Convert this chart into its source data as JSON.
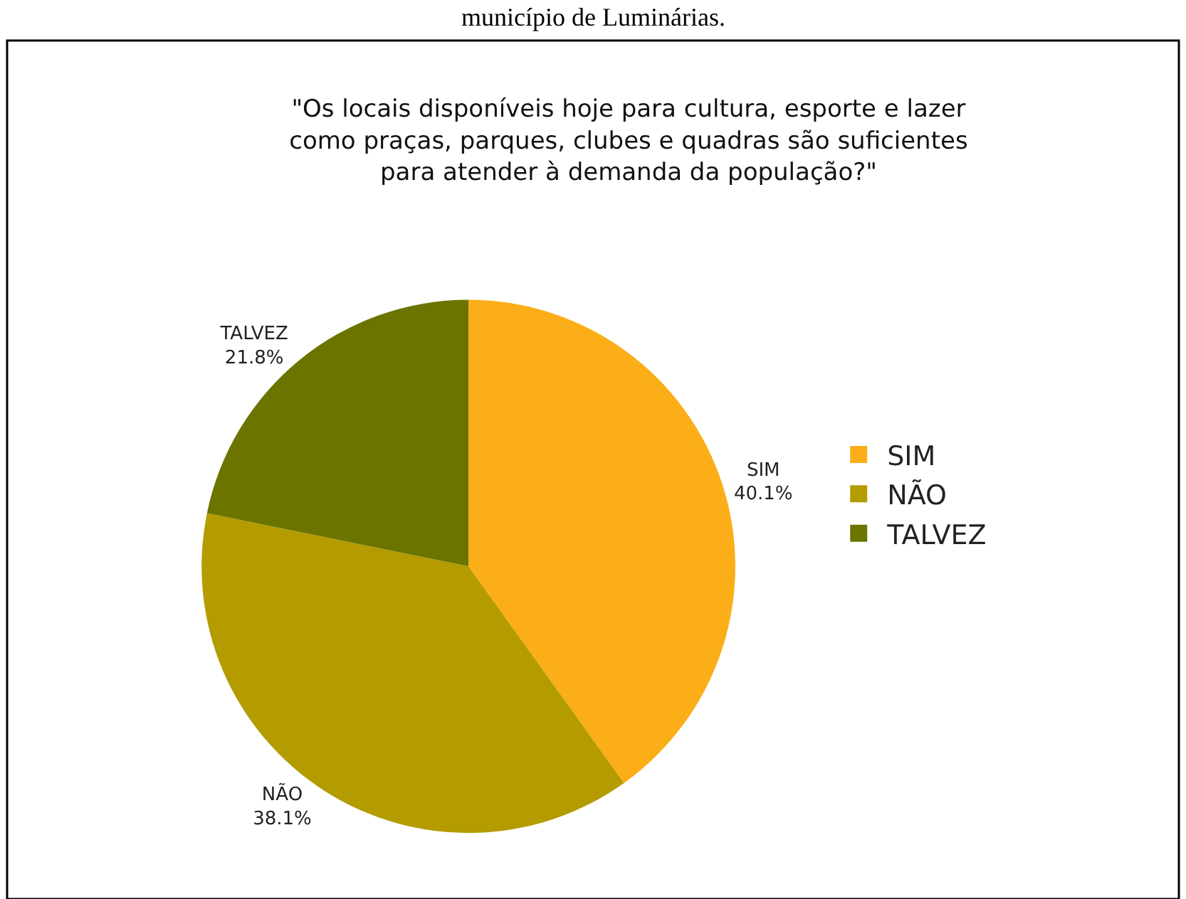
{
  "chart_data": {
    "type": "pie",
    "title": "\"Os locais disponíveis hoje para cultura, esporte e lazer\ncomo praças, parques, clubes e quadras são suficientes\npara atender à demanda da população?\"",
    "annotations": [
      "município de Luminárias."
    ],
    "categories": [
      "SIM",
      "NÃO",
      "TALVEZ"
    ],
    "values": [
      40.1,
      38.1,
      21.8
    ],
    "value_labels": [
      "40.1%",
      "38.1%",
      "21.8%"
    ],
    "colors": [
      "#fbae17",
      "#b39b00",
      "#6c7400"
    ],
    "legend": "right"
  }
}
